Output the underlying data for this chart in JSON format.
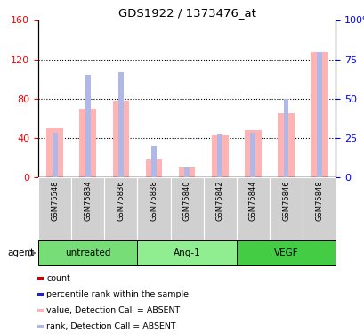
{
  "title": "GDS1922 / 1373476_at",
  "samples": [
    "GSM75548",
    "GSM75834",
    "GSM75836",
    "GSM75838",
    "GSM75840",
    "GSM75842",
    "GSM75844",
    "GSM75846",
    "GSM75848"
  ],
  "value_bars": [
    50,
    70,
    78,
    18,
    10,
    42,
    48,
    65,
    128
  ],
  "rank_bars": [
    28,
    65,
    67,
    20,
    6,
    27,
    28,
    50,
    80
  ],
  "left_ylim": [
    0,
    160
  ],
  "right_ylim": [
    0,
    100
  ],
  "left_yticks": [
    0,
    40,
    80,
    120,
    160
  ],
  "right_yticks": [
    0,
    25,
    50,
    75,
    100
  ],
  "right_yticklabels": [
    "0",
    "25",
    "50",
    "75",
    "100%"
  ],
  "grid_values": [
    40,
    80,
    120
  ],
  "bar_color_value": "#ffb3b3",
  "bar_color_rank": "#b0b8e8",
  "groups": [
    {
      "name": "untreated",
      "start": 0,
      "end": 2,
      "color": "#77dd77"
    },
    {
      "name": "Ang-1",
      "start": 3,
      "end": 5,
      "color": "#90ee90"
    },
    {
      "name": "VEGF",
      "start": 6,
      "end": 8,
      "color": "#44cc44"
    }
  ],
  "legend_items": [
    {
      "label": "count",
      "color": "#cc0000",
      "filled": true
    },
    {
      "label": "percentile rank within the sample",
      "color": "#2222cc",
      "filled": true
    },
    {
      "label": "value, Detection Call = ABSENT",
      "color": "#ffb3b3",
      "filled": true
    },
    {
      "label": "rank, Detection Call = ABSENT",
      "color": "#b0b8e8",
      "filled": true
    }
  ]
}
